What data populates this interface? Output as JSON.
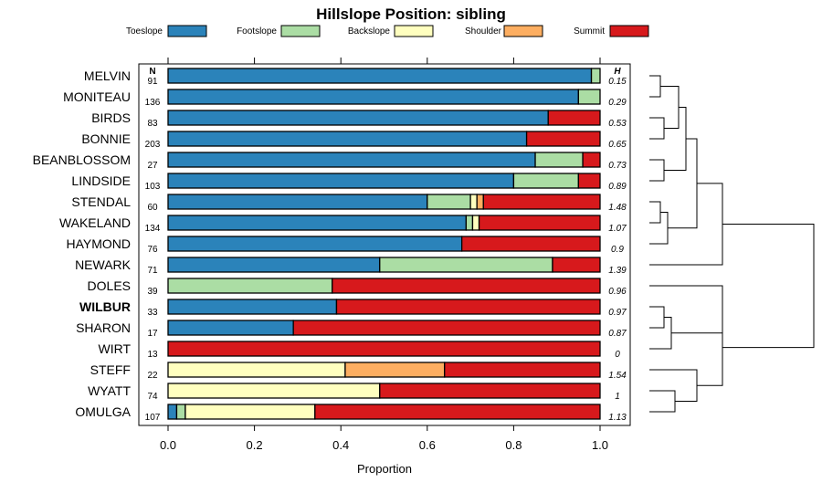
{
  "chart_data": {
    "type": "bar",
    "stacked": true,
    "orientation": "horizontal",
    "title": "Hillslope Position: sibling",
    "xlabel": "Proportion",
    "xlim": [
      0,
      1
    ],
    "xticks": [
      "0.0",
      "0.2",
      "0.4",
      "0.6",
      "0.8",
      "1.0"
    ],
    "n_header": "N",
    "h_header": "H",
    "legend": [
      {
        "name": "Toeslope",
        "color": "#2b83ba"
      },
      {
        "name": "Footslope",
        "color": "#abdda4"
      },
      {
        "name": "Backslope",
        "color": "#ffffbf"
      },
      {
        "name": "Shoulder",
        "color": "#fdae61"
      },
      {
        "name": "Summit",
        "color": "#d7191c"
      }
    ],
    "highlight": "WILBUR",
    "rows": [
      {
        "name": "MELVIN",
        "n": "91",
        "h": "0.15",
        "values": [
          0.98,
          0.02,
          0,
          0,
          0
        ]
      },
      {
        "name": "MONITEAU",
        "n": "136",
        "h": "0.29",
        "values": [
          0.95,
          0.05,
          0,
          0,
          0
        ]
      },
      {
        "name": "BIRDS",
        "n": "83",
        "h": "0.53",
        "values": [
          0.88,
          0,
          0,
          0,
          0.12
        ]
      },
      {
        "name": "BONNIE",
        "n": "203",
        "h": "0.65",
        "values": [
          0.83,
          0,
          0,
          0,
          0.17
        ]
      },
      {
        "name": "BEANBLOSSOM",
        "n": "27",
        "h": "0.73",
        "values": [
          0.85,
          0.11,
          0,
          0,
          0.04
        ]
      },
      {
        "name": "LINDSIDE",
        "n": "103",
        "h": "0.89",
        "values": [
          0.8,
          0.15,
          0,
          0,
          0.05
        ]
      },
      {
        "name": "STENDAL",
        "n": "60",
        "h": "1.48",
        "values": [
          0.6,
          0.1,
          0.015,
          0.015,
          0.27
        ]
      },
      {
        "name": "WAKELAND",
        "n": "134",
        "h": "1.07",
        "values": [
          0.69,
          0.015,
          0.015,
          0,
          0.28
        ]
      },
      {
        "name": "HAYMOND",
        "n": "76",
        "h": "0.9",
        "values": [
          0.68,
          0,
          0,
          0,
          0.32
        ]
      },
      {
        "name": "NEWARK",
        "n": "71",
        "h": "1.39",
        "values": [
          0.49,
          0.4,
          0,
          0,
          0.11
        ]
      },
      {
        "name": "DOLES",
        "n": "39",
        "h": "0.96",
        "values": [
          0,
          0.38,
          0,
          0,
          0.62
        ]
      },
      {
        "name": "WILBUR",
        "n": "33",
        "h": "0.97",
        "values": [
          0.39,
          0,
          0,
          0,
          0.61
        ]
      },
      {
        "name": "SHARON",
        "n": "17",
        "h": "0.87",
        "values": [
          0.29,
          0,
          0,
          0,
          0.71
        ]
      },
      {
        "name": "WIRT",
        "n": "13",
        "h": "0",
        "values": [
          0,
          0,
          0,
          0,
          1.0
        ]
      },
      {
        "name": "STEFF",
        "n": "22",
        "h": "1.54",
        "values": [
          0,
          0,
          0.41,
          0.23,
          0.36
        ]
      },
      {
        "name": "WYATT",
        "n": "74",
        "h": "1",
        "values": [
          0,
          0,
          0.49,
          0,
          0.51
        ]
      },
      {
        "name": "OMULGA",
        "n": "107",
        "h": "1.13",
        "values": [
          0.02,
          0.02,
          0.3,
          0,
          0.66
        ]
      }
    ],
    "dendrogram_merges": [
      [
        0,
        1
      ],
      [
        2,
        3
      ],
      [
        4,
        5
      ],
      [
        17,
        18
      ],
      [
        19,
        20
      ],
      [
        6,
        7
      ],
      [
        22,
        8
      ],
      [
        21,
        23
      ],
      [
        24,
        9
      ],
      [
        11,
        12
      ],
      [
        26,
        13
      ],
      [
        10,
        27
      ],
      [
        15,
        16
      ],
      [
        14,
        29
      ],
      [
        28,
        30
      ],
      [
        25,
        31
      ]
    ],
    "dendrogram_heights": [
      0.03,
      0.04,
      0.04,
      0.08,
      0.1,
      0.03,
      0.05,
      0.13,
      0.2,
      0.04,
      0.06,
      0.2,
      0.07,
      0.13,
      0.2,
      0.45
    ]
  }
}
